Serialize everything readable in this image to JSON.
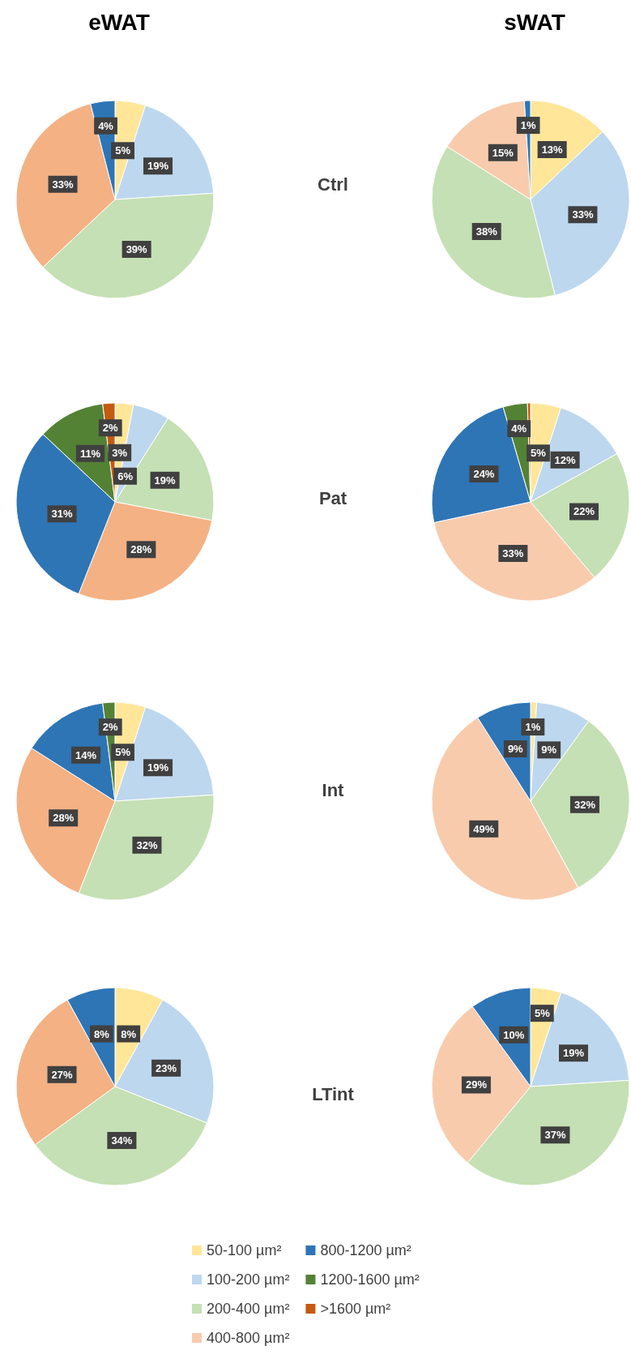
{
  "chart_data": [
    {
      "type": "pie",
      "title": "eWAT",
      "annotations": [
        "Ctrl"
      ],
      "categories": [
        null,
        null,
        null,
        null,
        null,
        null,
        null
      ],
      "values": [
        5,
        19,
        39,
        33,
        4,
        null,
        null
      ],
      "value_labels": [
        "5%",
        "19%",
        "39%",
        "33%",
        "4%",
        null,
        null
      ],
      "colors": [
        "#ffe699",
        "#bdd7ee",
        "#c5e0b4",
        "#f4b183",
        "#2e75b6",
        "#548235",
        "#c55a11"
      ]
    },
    {
      "type": "pie",
      "title": "sWAT",
      "categories": [
        null,
        null,
        null,
        null,
        null,
        null,
        null
      ],
      "values": [
        13,
        33,
        38,
        15,
        1,
        null,
        null
      ],
      "value_labels": [
        "13%",
        "33%",
        "38%",
        "15%",
        "1%",
        null,
        null
      ],
      "colors": [
        "#ffe699",
        "#bdd7ee",
        "#c5e0b4",
        "#f8cbad",
        "#2e75b6",
        "#548235",
        "#c55a11"
      ]
    },
    {
      "type": "pie",
      "annotations": [
        "Pat"
      ],
      "categories": [
        null,
        null,
        null,
        null,
        null,
        null,
        null
      ],
      "values": [
        3,
        6,
        19,
        28,
        31,
        11,
        2
      ],
      "value_labels": [
        "3%",
        "6%",
        "19%",
        "28%",
        "31%",
        "11%",
        "2%"
      ],
      "colors": [
        "#ffe699",
        "#bdd7ee",
        "#c5e0b4",
        "#f4b183",
        "#2e75b6",
        "#548235",
        "#c55a11"
      ]
    },
    {
      "type": "pie",
      "categories": [
        null,
        null,
        null,
        null,
        null,
        null,
        null
      ],
      "values": [
        5,
        12,
        22,
        33,
        24,
        4,
        0.5
      ],
      "value_labels": [
        "5%",
        "12%",
        "22%",
        "33%",
        "24%",
        "4%",
        null
      ],
      "colors": [
        "#ffe699",
        "#bdd7ee",
        "#c5e0b4",
        "#f8cbad",
        "#2e75b6",
        "#548235",
        "#c55a11"
      ]
    },
    {
      "type": "pie",
      "annotations": [
        "Int"
      ],
      "categories": [
        null,
        null,
        null,
        null,
        null,
        null,
        null
      ],
      "values": [
        5,
        19,
        32,
        28,
        14,
        2,
        null
      ],
      "value_labels": [
        "5%",
        "19%",
        "32%",
        "28%",
        "14%",
        "2%",
        null
      ],
      "colors": [
        "#ffe699",
        "#bdd7ee",
        "#c5e0b4",
        "#f4b183",
        "#2e75b6",
        "#548235",
        "#c55a11"
      ]
    },
    {
      "type": "pie",
      "categories": [
        null,
        null,
        null,
        null,
        null,
        null,
        null
      ],
      "values": [
        1,
        9,
        32,
        49,
        9,
        null,
        null
      ],
      "value_labels": [
        "1%",
        "9%",
        "32%",
        "49%",
        "9%",
        null,
        null
      ],
      "colors": [
        "#ffe699",
        "#bdd7ee",
        "#c5e0b4",
        "#f8cbad",
        "#2e75b6",
        "#548235",
        "#c55a11"
      ]
    },
    {
      "type": "pie",
      "annotations": [
        "LTint"
      ],
      "categories": [
        null,
        null,
        null,
        null,
        null,
        null,
        null
      ],
      "values": [
        8,
        23,
        34,
        27,
        8,
        null,
        null
      ],
      "value_labels": [
        "8%",
        "23%",
        "34%",
        "27%",
        "8%",
        null,
        null
      ],
      "colors": [
        "#ffe699",
        "#bdd7ee",
        "#c5e0b4",
        "#f4b183",
        "#2e75b6",
        "#548235",
        "#c55a11"
      ]
    },
    {
      "type": "pie",
      "categories": [
        "50-100 µm²",
        "100-200 µm²",
        "200-400 µm²",
        "400-800 µm²",
        "800-1200 µm²",
        "1200-1600 µm²",
        ">1600 µm²"
      ],
      "values": [
        5,
        19,
        37,
        29,
        10,
        null,
        null
      ],
      "value_labels": [
        "5%",
        "19%",
        "37%",
        "29%",
        "10%",
        null,
        null
      ],
      "legend": "bottom",
      "colors": [
        "#ffe699",
        "#bdd7ee",
        "#c5e0b4",
        "#f8cbad",
        "#2e75b6",
        "#548235",
        "#c55a11"
      ]
    }
  ]
}
